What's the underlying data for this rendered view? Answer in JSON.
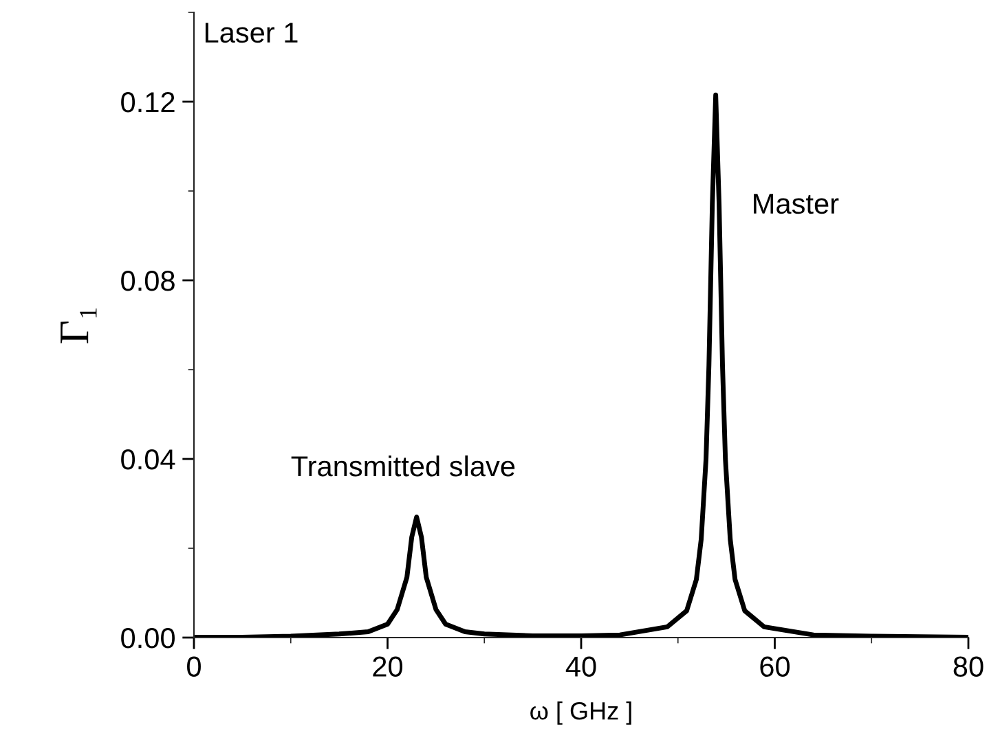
{
  "chart_data": {
    "type": "line",
    "xlabel": "ω [ GHz ]",
    "ylabel": "Γ₁",
    "x": [
      0,
      5,
      10,
      15,
      18,
      20,
      21,
      22,
      22.5,
      23,
      23.5,
      24,
      25,
      26,
      28,
      30,
      35,
      40,
      44,
      48.9,
      50.9,
      51.9,
      52.4,
      52.9,
      53.2,
      53.55,
      53.9,
      54.25,
      54.6,
      54.9,
      55.4,
      55.9,
      56.9,
      58.9,
      64,
      70,
      75,
      80
    ],
    "series": [
      {
        "color": "#000000",
        "values": [
          0.0001,
          0.0001,
          0.0003,
          0.0008,
          0.0013,
          0.003,
          0.0063,
          0.0135,
          0.0225,
          0.027,
          0.0225,
          0.0135,
          0.0063,
          0.003,
          0.0013,
          0.0008,
          0.0004,
          0.0004,
          0.0006,
          0.0024,
          0.006,
          0.013,
          0.022,
          0.04,
          0.061,
          0.097,
          0.1215,
          0.097,
          0.061,
          0.04,
          0.022,
          0.013,
          0.006,
          0.0024,
          0.0006,
          0.0003,
          0.0002,
          0.0001
        ]
      }
    ],
    "xlim": [
      0,
      80
    ],
    "xticks": [
      0,
      20,
      40,
      60,
      80
    ],
    "ylim": [
      0,
      0.14
    ],
    "yticks": [
      {
        "value": 0,
        "label": "0.00"
      },
      {
        "value": 0.04,
        "label": "0.04"
      },
      {
        "value": 0.08,
        "label": "0.08"
      },
      {
        "value": 0.12,
        "label": "0.12"
      }
    ],
    "annotations": [
      "Laser 1",
      "Transmitted slave",
      "Master"
    ],
    "grid": false,
    "legend": false,
    "marker": "none",
    "line_style": "solid"
  }
}
